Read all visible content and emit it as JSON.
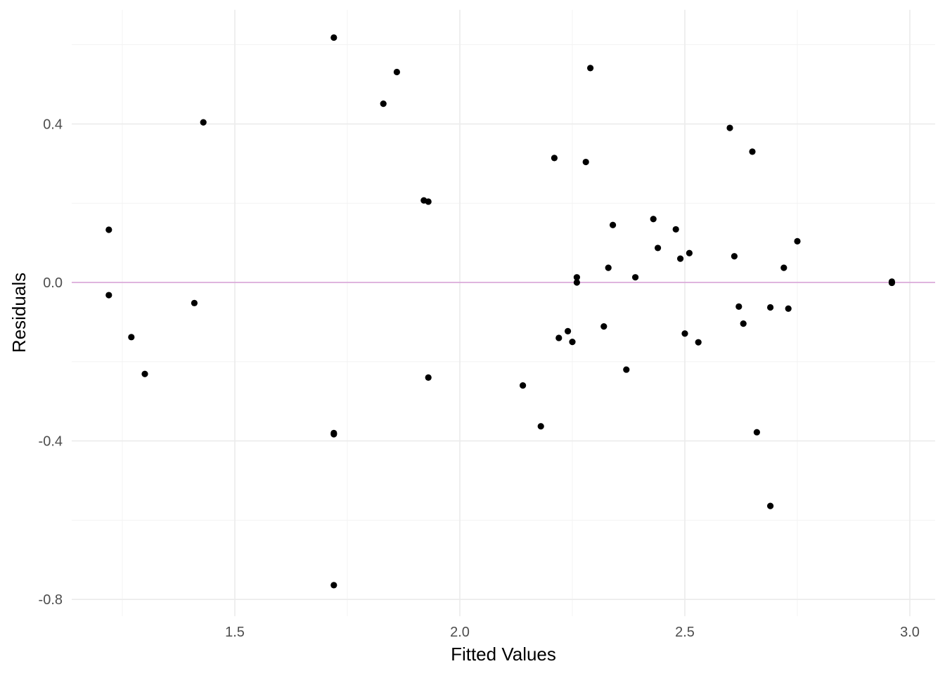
{
  "chart_data": {
    "type": "scatter",
    "title": "",
    "xlabel": "Fitted Values",
    "ylabel": "Residuals",
    "xlim": [
      1.11,
      3.06
    ],
    "ylim": [
      -0.83,
      0.68
    ],
    "x_ticks": [
      {
        "value": 1.5,
        "label": "1.5"
      },
      {
        "value": 2.0,
        "label": "2.0"
      },
      {
        "value": 2.5,
        "label": "2.5"
      },
      {
        "value": 3.0,
        "label": "3.0"
      }
    ],
    "x_minor_ticks": [
      1.25,
      1.75,
      2.25,
      2.75
    ],
    "y_ticks": [
      {
        "value": 0.4,
        "label": "0.4"
      },
      {
        "value": 0.0,
        "label": "0.0"
      },
      {
        "value": -0.4,
        "label": "-0.4"
      },
      {
        "value": -0.8,
        "label": "-0.8"
      }
    ],
    "y_minor_ticks": [
      0.6,
      0.2,
      -0.2,
      -0.6
    ],
    "grid": true,
    "reference_line": {
      "y": 0.0,
      "color": "#d8a0d6"
    },
    "point_color": "#000000",
    "points": [
      {
        "x": 1.22,
        "y": 0.133
      },
      {
        "x": 1.22,
        "y": -0.032
      },
      {
        "x": 1.27,
        "y": -0.138
      },
      {
        "x": 1.3,
        "y": -0.231
      },
      {
        "x": 1.41,
        "y": -0.052
      },
      {
        "x": 1.43,
        "y": 0.404
      },
      {
        "x": 1.72,
        "y": 0.618
      },
      {
        "x": 1.72,
        "y": -0.38
      },
      {
        "x": 1.72,
        "y": -0.383
      },
      {
        "x": 1.72,
        "y": -0.764
      },
      {
        "x": 1.83,
        "y": 0.451
      },
      {
        "x": 1.86,
        "y": 0.531
      },
      {
        "x": 1.92,
        "y": 0.207
      },
      {
        "x": 1.93,
        "y": 0.204
      },
      {
        "x": 1.93,
        "y": -0.24
      },
      {
        "x": 2.14,
        "y": -0.26
      },
      {
        "x": 2.18,
        "y": -0.363
      },
      {
        "x": 2.21,
        "y": 0.314
      },
      {
        "x": 2.22,
        "y": -0.14
      },
      {
        "x": 2.24,
        "y": -0.123
      },
      {
        "x": 2.25,
        "y": -0.15
      },
      {
        "x": 2.26,
        "y": 0.013
      },
      {
        "x": 2.26,
        "y": 0.0
      },
      {
        "x": 2.28,
        "y": 0.304
      },
      {
        "x": 2.29,
        "y": 0.541
      },
      {
        "x": 2.32,
        "y": -0.111
      },
      {
        "x": 2.33,
        "y": 0.037
      },
      {
        "x": 2.34,
        "y": 0.145
      },
      {
        "x": 2.37,
        "y": -0.22
      },
      {
        "x": 2.39,
        "y": 0.013
      },
      {
        "x": 2.43,
        "y": 0.16
      },
      {
        "x": 2.44,
        "y": 0.087
      },
      {
        "x": 2.48,
        "y": 0.134
      },
      {
        "x": 2.49,
        "y": 0.06
      },
      {
        "x": 2.5,
        "y": -0.129
      },
      {
        "x": 2.51,
        "y": 0.074
      },
      {
        "x": 2.53,
        "y": -0.151
      },
      {
        "x": 2.6,
        "y": 0.39
      },
      {
        "x": 2.61,
        "y": 0.066
      },
      {
        "x": 2.62,
        "y": -0.061
      },
      {
        "x": 2.63,
        "y": -0.104
      },
      {
        "x": 2.65,
        "y": 0.33
      },
      {
        "x": 2.66,
        "y": -0.378
      },
      {
        "x": 2.69,
        "y": -0.063
      },
      {
        "x": 2.69,
        "y": -0.564
      },
      {
        "x": 2.72,
        "y": 0.037
      },
      {
        "x": 2.73,
        "y": -0.066
      },
      {
        "x": 2.75,
        "y": 0.104
      },
      {
        "x": 2.96,
        "y": 0.002
      },
      {
        "x": 2.96,
        "y": -0.001
      }
    ]
  }
}
